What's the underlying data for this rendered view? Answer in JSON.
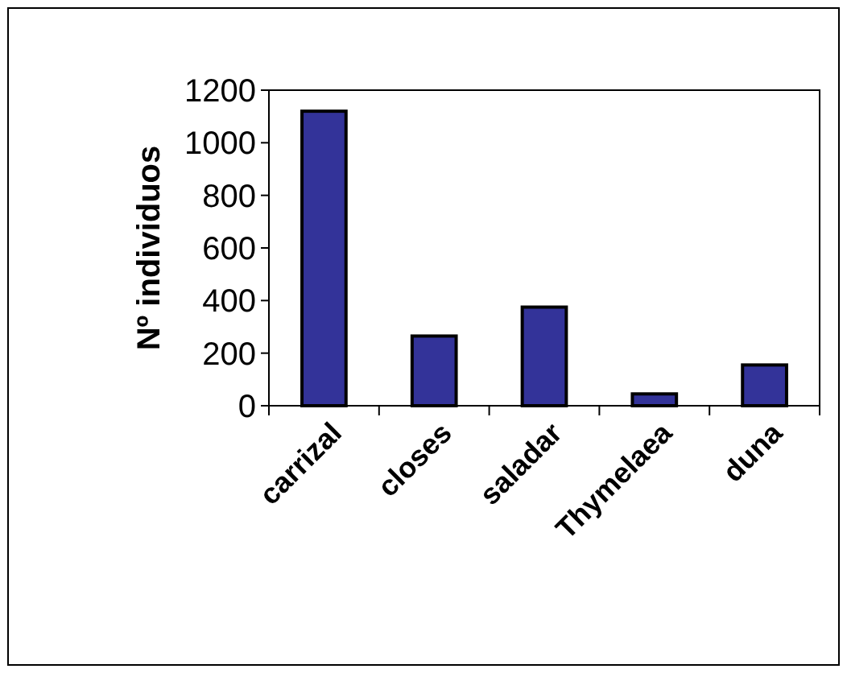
{
  "chart_data": {
    "type": "bar",
    "ylabel": "Nº individuos",
    "categories": [
      "carrizal",
      "closes",
      "saladar",
      "Thymelaea",
      "duna"
    ],
    "values": [
      1120,
      265,
      375,
      45,
      155
    ],
    "color": "#333399",
    "ylim": [
      0,
      1200
    ],
    "yticks": [
      0,
      200,
      400,
      600,
      800,
      1000,
      1200
    ],
    "grid": false
  }
}
